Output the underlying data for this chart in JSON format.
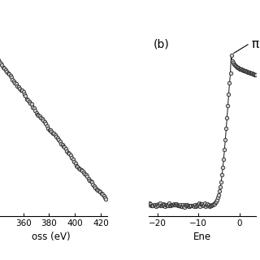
{
  "panel_a": {
    "x_label": "oss (eV)",
    "x_ticks": [
      360,
      380,
      400,
      420
    ],
    "x_min": 338,
    "x_max": 425,
    "y_min": -0.05,
    "y_max": 1.05
  },
  "panel_b": {
    "x_label": "Ene",
    "x_ticks": [
      -20,
      -10,
      0
    ],
    "x_min": -22,
    "x_max": 4,
    "y_min": -0.05,
    "y_max": 1.1,
    "label_b": "(b)",
    "pi_label": "π"
  },
  "background_color": "#ffffff",
  "dot_color": "#2a2a2a",
  "dot_size": 3.2,
  "line_color": "#111111",
  "line_width": 0.7
}
